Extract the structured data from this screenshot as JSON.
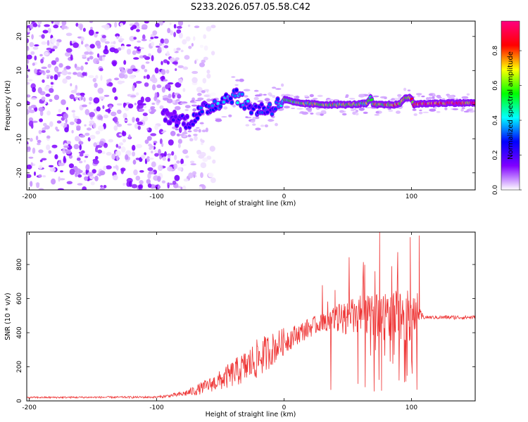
{
  "title": "S233.2026.057.05.58.C42",
  "chart_data": [
    {
      "type": "heatmap",
      "name": "spectrogram",
      "xlabel": "Height of straight line (km)",
      "ylabel": "Frequency (Hz)",
      "xlim": [
        -202,
        150
      ],
      "ylim": [
        -25,
        24.5
      ],
      "xticks": [
        -200,
        -100,
        0,
        100
      ],
      "yticks": [
        -20,
        -10,
        0,
        10,
        20
      ],
      "colorbar": {
        "label": "Normalized spectral amplitude",
        "range": [
          0,
          0.97
        ],
        "ticks": [
          0.0,
          0.2,
          0.4,
          0.6,
          0.8
        ],
        "colors": [
          "#ffffff",
          "#8000ff",
          "#0000ff",
          "#00ffff",
          "#00ff00",
          "#ffff00",
          "#ff0000",
          "#ff0080"
        ]
      },
      "ridge": {
        "x": [
          -95,
          -85,
          -75,
          -65,
          -55,
          -45,
          -38,
          -30,
          -20,
          -10,
          -5,
          0,
          10,
          30,
          50,
          65,
          68,
          70,
          75,
          90,
          95,
          100,
          102,
          110,
          130,
          150
        ],
        "freq": [
          -3,
          -4,
          -5,
          -2,
          0,
          2,
          3,
          0,
          -1.5,
          -1,
          0,
          1.5,
          0.5,
          0,
          0,
          0.3,
          2,
          0,
          0,
          0,
          2,
          2,
          0,
          0.3,
          0.5,
          0.5
        ],
        "amplitude": [
          0.15,
          0.2,
          0.25,
          0.3,
          0.35,
          0.35,
          0.4,
          0.35,
          0.3,
          0.3,
          0.4,
          0.5,
          0.6,
          0.65,
          0.65,
          0.6,
          0.6,
          0.65,
          0.7,
          0.75,
          0.7,
          0.8,
          0.9,
          0.9,
          0.9,
          0.85
        ]
      },
      "noise": {
        "region_x": [
          -202,
          -80
        ],
        "amplitude_range": [
          0.0,
          0.15
        ]
      }
    },
    {
      "type": "line",
      "name": "snr",
      "xlabel": "Height of straight line (km)",
      "ylabel": "SNR (10 * v/v)",
      "xlim": [
        -202,
        150
      ],
      "ylim": [
        0,
        990
      ],
      "xticks": [
        -200,
        -100,
        0,
        100
      ],
      "yticks": [
        0,
        200,
        400,
        600,
        800
      ],
      "color": "#ee3333",
      "envelope": {
        "x": [
          -202,
          -100,
          -90,
          -80,
          -70,
          -60,
          -50,
          -40,
          -30,
          -20,
          -10,
          0,
          10,
          20,
          30,
          40,
          50,
          60,
          70,
          80,
          90,
          100,
          105,
          110,
          130,
          150
        ],
        "baseline": [
          20,
          22,
          30,
          40,
          60,
          90,
          120,
          160,
          200,
          250,
          300,
          350,
          390,
          430,
          460,
          480,
          490,
          500,
          500,
          500,
          500,
          500,
          500,
          490,
          490,
          490
        ],
        "spread": [
          5,
          6,
          10,
          15,
          30,
          40,
          60,
          80,
          100,
          120,
          100,
          80,
          60,
          60,
          50,
          80,
          100,
          120,
          120,
          150,
          150,
          150,
          60,
          10,
          12,
          12
        ]
      },
      "spikes": [
        {
          "x": 75,
          "y": 990
        },
        {
          "x": 76.5,
          "y": 60
        },
        {
          "x": 99,
          "y": 960
        },
        {
          "x": 100.5,
          "y": 160
        },
        {
          "x": 106,
          "y": 970
        },
        {
          "x": 84.5,
          "y": 790
        },
        {
          "x": 58,
          "y": 100
        },
        {
          "x": 40,
          "y": 650
        }
      ]
    }
  ]
}
